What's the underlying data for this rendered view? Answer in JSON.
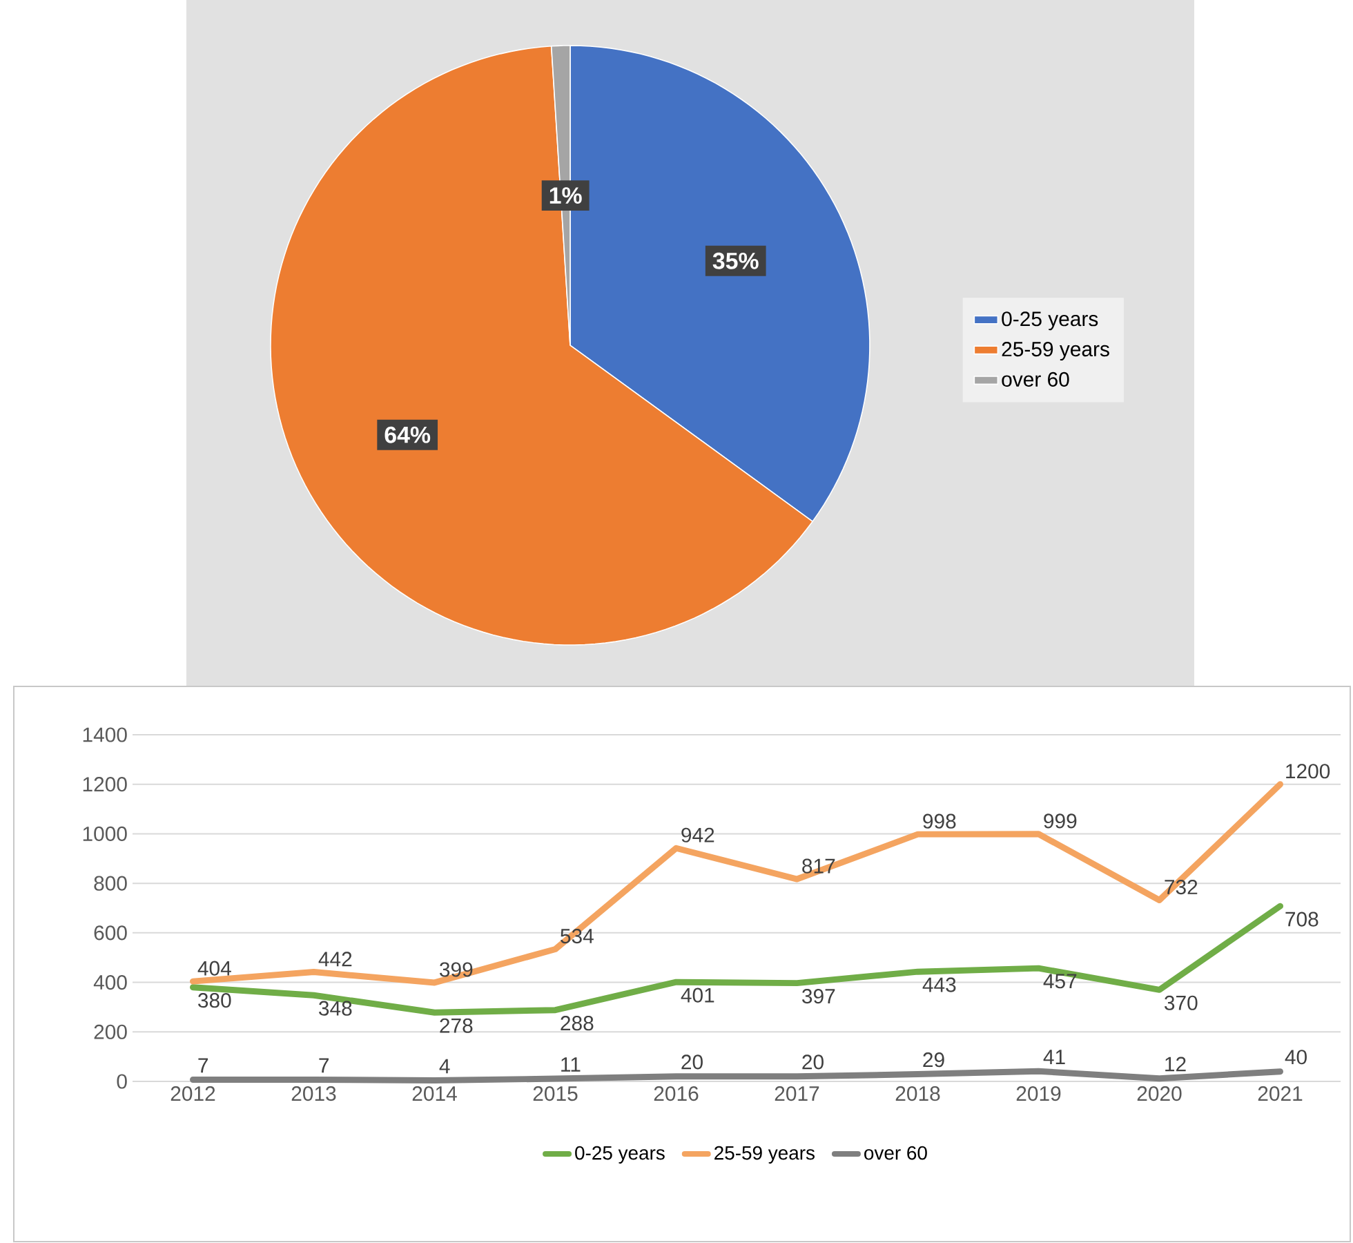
{
  "chart_data": [
    {
      "type": "pie",
      "categories": [
        "0-25 years",
        "25-59 years",
        "over 60"
      ],
      "values": [
        35,
        64,
        1
      ],
      "colors": [
        "#4472c4",
        "#ed7d31",
        "#a5a5a5"
      ],
      "value_labels": [
        "35%",
        "64%",
        "1%"
      ],
      "legend": "right"
    },
    {
      "type": "line",
      "categories": [
        "2012",
        "2013",
        "2014",
        "2015",
        "2016",
        "2017",
        "2018",
        "2019",
        "2020",
        "2021"
      ],
      "series": [
        {
          "name": "0-25 years",
          "color": "#70ad47",
          "values": [
            380,
            348,
            278,
            288,
            401,
            397,
            443,
            457,
            370,
            708
          ]
        },
        {
          "name": "25-59 years",
          "color": "#f4a460",
          "values": [
            404,
            442,
            399,
            534,
            942,
            817,
            998,
            999,
            732,
            1200
          ]
        },
        {
          "name": "over 60",
          "color": "#7f7f7f",
          "values": [
            7,
            7,
            4,
            11,
            20,
            20,
            29,
            41,
            12,
            40
          ]
        }
      ],
      "ylim": [
        0,
        1400
      ],
      "yticks": [
        0,
        200,
        400,
        600,
        800,
        1000,
        1200,
        1400
      ],
      "grid": "y",
      "legend": "bottom",
      "data_labels": true
    }
  ]
}
